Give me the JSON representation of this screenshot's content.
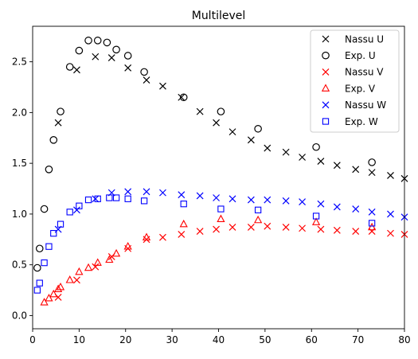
{
  "chart_data": {
    "type": "scatter",
    "title": "Multilevel",
    "xlabel": "",
    "ylabel": "",
    "xlim": [
      0,
      80
    ],
    "ylim": [
      -0.13,
      2.85
    ],
    "xticks": [
      0,
      10,
      20,
      30,
      40,
      50,
      60,
      70,
      80
    ],
    "yticks": [
      0.0,
      0.5,
      1.0,
      1.5,
      2.0,
      2.5
    ],
    "grid": false,
    "legend_position": "top-right",
    "series": [
      {
        "name": "Nassu U",
        "marker": "x",
        "color": "#000000",
        "x": [
          9.5,
          13.5,
          17,
          20.5,
          24.5,
          28,
          32,
          36,
          39.5,
          43,
          47,
          50.5,
          54.5,
          58,
          62,
          65.5,
          69.5,
          73,
          77,
          80,
          5.5
        ],
        "y": [
          2.42,
          2.55,
          2.54,
          2.44,
          2.32,
          2.26,
          2.15,
          2.01,
          1.9,
          1.81,
          1.73,
          1.65,
          1.61,
          1.56,
          1.52,
          1.48,
          1.44,
          1.41,
          1.38,
          1.35,
          1.9
        ]
      },
      {
        "name": "Exp. U",
        "marker": "o",
        "color": "#000000",
        "x": [
          1,
          1.5,
          2.5,
          3.5,
          4.5,
          6,
          8,
          10,
          12,
          14,
          16,
          18,
          20.5,
          24,
          32.5,
          40.5,
          48.5,
          61,
          73
        ],
        "y": [
          0.47,
          0.66,
          1.05,
          1.44,
          1.73,
          2.01,
          2.45,
          2.61,
          2.71,
          2.71,
          2.69,
          2.62,
          2.56,
          2.4,
          2.15,
          2.01,
          1.84,
          1.66,
          1.51
        ]
      },
      {
        "name": "Nassu V",
        "marker": "x",
        "color": "#ff0000",
        "x": [
          5.5,
          9.5,
          13.5,
          17,
          20.5,
          24.5,
          28,
          32,
          36,
          39.5,
          43,
          47,
          50.5,
          54.5,
          58,
          62,
          65.5,
          69.5,
          73,
          77,
          80
        ],
        "y": [
          0.18,
          0.35,
          0.48,
          0.58,
          0.66,
          0.75,
          0.77,
          0.8,
          0.83,
          0.85,
          0.87,
          0.87,
          0.88,
          0.87,
          0.86,
          0.85,
          0.84,
          0.83,
          0.83,
          0.81,
          0.8
        ]
      },
      {
        "name": "Exp. V",
        "marker": "^",
        "color": "#ff0000",
        "x": [
          2.5,
          3.5,
          4.5,
          5.5,
          6,
          8,
          10,
          12,
          14,
          16.5,
          18,
          20.5,
          24.5,
          32.5,
          40.5,
          48.5,
          61,
          73
        ],
        "y": [
          0.13,
          0.17,
          0.21,
          0.26,
          0.28,
          0.35,
          0.43,
          0.47,
          0.52,
          0.55,
          0.61,
          0.68,
          0.77,
          0.9,
          0.95,
          0.94,
          0.92,
          0.87
        ]
      },
      {
        "name": "Nassu W",
        "marker": "x",
        "color": "#0000ff",
        "x": [
          5.5,
          9.5,
          13.5,
          17,
          20.5,
          24.5,
          28,
          32,
          36,
          39.5,
          43,
          47,
          50.5,
          54.5,
          58,
          62,
          65.5,
          69.5,
          73,
          77,
          80
        ],
        "y": [
          0.85,
          1.04,
          1.15,
          1.21,
          1.22,
          1.22,
          1.21,
          1.19,
          1.18,
          1.16,
          1.15,
          1.14,
          1.14,
          1.13,
          1.12,
          1.1,
          1.07,
          1.05,
          1.02,
          1.0,
          0.97
        ]
      },
      {
        "name": "Exp. W",
        "marker": "s",
        "color": "#0000ff",
        "x": [
          1,
          1.5,
          2.5,
          3.5,
          4.5,
          6,
          8,
          10,
          12,
          14,
          16.5,
          18,
          20.5,
          24,
          32.5,
          40.5,
          48.5,
          61,
          73
        ],
        "y": [
          0.25,
          0.32,
          0.52,
          0.68,
          0.81,
          0.9,
          1.02,
          1.08,
          1.14,
          1.15,
          1.16,
          1.16,
          1.15,
          1.13,
          1.1,
          1.05,
          1.04,
          0.98,
          0.91
        ]
      }
    ]
  }
}
